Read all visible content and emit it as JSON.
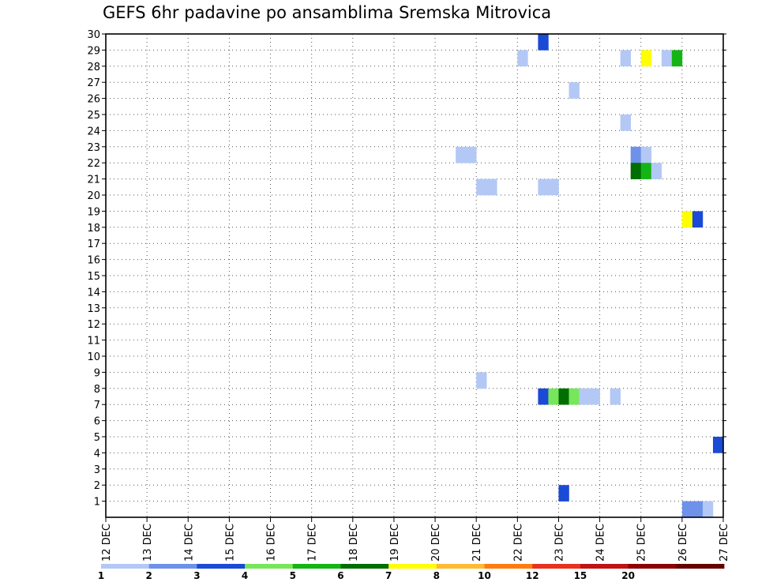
{
  "chart_data": {
    "type": "heatmap",
    "title": "GEFS 6hr padavine po ansamblima Sremska Mitrovica",
    "xlabel": "",
    "ylabel": "",
    "x_unit": "6-hour forecast steps from 12 DEC 00Z",
    "x_range": [
      0,
      60
    ],
    "y_range": [
      0,
      30
    ],
    "x_ticks": [
      "12 DEC",
      "13 DEC",
      "14 DEC",
      "15 DEC",
      "16 DEC",
      "17 DEC",
      "18 DEC",
      "19 DEC",
      "20 DEC",
      "21 DEC",
      "22 DEC",
      "23 DEC",
      "24 DEC",
      "25 DEC",
      "26 DEC",
      "27 DEC"
    ],
    "y_ticks": [
      "1",
      "2",
      "3",
      "4",
      "5",
      "6",
      "7",
      "8",
      "9",
      "10",
      "11",
      "12",
      "13",
      "14",
      "15",
      "16",
      "17",
      "18",
      "19",
      "20",
      "21",
      "22",
      "23",
      "24",
      "25",
      "26",
      "27",
      "28",
      "29",
      "30"
    ],
    "grid": true,
    "legend_position": "bottom",
    "legend": {
      "bins": [
        {
          "color": "#b3c8f5"
        },
        {
          "color": "#6e91ea"
        },
        {
          "color": "#1a4ad6"
        },
        {
          "color": "#78e65a"
        },
        {
          "color": "#14b414"
        },
        {
          "color": "#006e00"
        },
        {
          "color": "#ffff00"
        },
        {
          "color": "#ffbb33"
        },
        {
          "color": "#ff7d10"
        },
        {
          "color": "#e8321e"
        },
        {
          "color": "#be1414"
        },
        {
          "color": "#8c0000"
        },
        {
          "color": "#640000"
        }
      ],
      "labels": [
        "1",
        "2",
        "3",
        "4",
        "5",
        "6",
        "7",
        "8",
        "10",
        "12",
        "15",
        "20"
      ]
    },
    "cells": [
      {
        "t": 42,
        "m": 29,
        "bin": 3
      },
      {
        "t": 40,
        "m": 28,
        "bin": 1
      },
      {
        "t": 50,
        "m": 28,
        "bin": 1
      },
      {
        "t": 52,
        "m": 28,
        "bin": 7
      },
      {
        "t": 54,
        "m": 28,
        "bin": 1
      },
      {
        "t": 55,
        "m": 28,
        "bin": 5
      },
      {
        "t": 45,
        "m": 26,
        "bin": 1
      },
      {
        "t": 50,
        "m": 24,
        "bin": 1
      },
      {
        "t": 34,
        "m": 22,
        "bin": 1
      },
      {
        "t": 35,
        "m": 22,
        "bin": 1
      },
      {
        "t": 51,
        "m": 22,
        "bin": 2
      },
      {
        "t": 52,
        "m": 22,
        "bin": 1
      },
      {
        "t": 51,
        "m": 21,
        "bin": 6
      },
      {
        "t": 52,
        "m": 21,
        "bin": 5
      },
      {
        "t": 53,
        "m": 21,
        "bin": 1
      },
      {
        "t": 36,
        "m": 20,
        "bin": 1
      },
      {
        "t": 37,
        "m": 20,
        "bin": 1
      },
      {
        "t": 42,
        "m": 20,
        "bin": 1
      },
      {
        "t": 43,
        "m": 20,
        "bin": 1
      },
      {
        "t": 56,
        "m": 18,
        "bin": 7
      },
      {
        "t": 57,
        "m": 18,
        "bin": 3
      },
      {
        "t": 36,
        "m": 8,
        "bin": 1
      },
      {
        "t": 42,
        "m": 7,
        "bin": 3
      },
      {
        "t": 43,
        "m": 7,
        "bin": 4
      },
      {
        "t": 44,
        "m": 7,
        "bin": 6
      },
      {
        "t": 45,
        "m": 7,
        "bin": 4
      },
      {
        "t": 46,
        "m": 7,
        "bin": 1
      },
      {
        "t": 47,
        "m": 7,
        "bin": 1
      },
      {
        "t": 49,
        "m": 7,
        "bin": 1
      },
      {
        "t": 59,
        "m": 4,
        "bin": 3
      },
      {
        "t": 44,
        "m": 1,
        "bin": 3
      },
      {
        "t": 56,
        "m": 0,
        "bin": 2
      },
      {
        "t": 57,
        "m": 0,
        "bin": 2
      },
      {
        "t": 58,
        "m": 0,
        "bin": 1
      }
    ]
  }
}
